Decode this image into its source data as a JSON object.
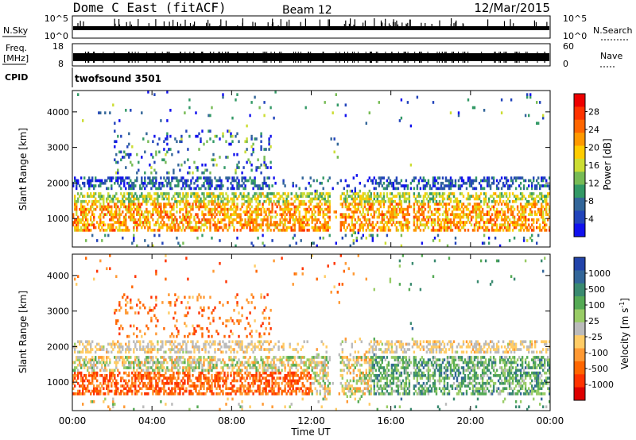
{
  "header": {
    "title": "Dome C East (fitACF)",
    "beam": "Beam 12",
    "date": "12/Mar/2015"
  },
  "top_panels": {
    "nsky_label": "N.Sky",
    "nsky_ticks": [
      "10^5",
      "10^0"
    ],
    "nsearch_label": "N.Search",
    "nsearch_ticks": [
      "10^5",
      "10^0"
    ],
    "freq_label_line1": "Freq.",
    "freq_label_line2": "[MHz]",
    "freq_ticks": [
      "18",
      "8"
    ],
    "nave_label": "Nave",
    "nave_ticks": [
      "60",
      "0"
    ],
    "cpid_label": "CPID",
    "cpid_value": "twofsound 3501"
  },
  "chart_data": [
    {
      "type": "heatmap",
      "name": "power",
      "ylabel": "Slant Range [km]",
      "ylim": [
        200,
        4600
      ],
      "yticks": [
        1000,
        2000,
        3000,
        4000
      ],
      "xlim": [
        0,
        24
      ],
      "colorbar": {
        "label": "Power [dB]",
        "ticks": [
          "28",
          "24",
          "20",
          "16",
          "12",
          "8",
          "4"
        ],
        "colors": [
          "#ee0000",
          "#ff3300",
          "#ff6600",
          "#ff9900",
          "#ffcc00",
          "#ccdd33",
          "#77bb55",
          "#339966",
          "#336699",
          "#2244bb",
          "#1111ee"
        ]
      }
    },
    {
      "type": "heatmap",
      "name": "velocity",
      "ylabel": "Slant Range [km]",
      "ylim": [
        200,
        4600
      ],
      "yticks": [
        1000,
        2000,
        3000,
        4000
      ],
      "xlim": [
        0,
        24
      ],
      "colorbar": {
        "label": "Velocity [m s^-1]",
        "ticks": [
          "1000",
          "500",
          "100",
          "25",
          "-25",
          "-100",
          "-500",
          "-1000"
        ],
        "colors": [
          "#2244aa",
          "#336699",
          "#3a8a70",
          "#55aa55",
          "#99cc66",
          "#bbbbbb",
          "#ffcc66",
          "#ff9933",
          "#ff6600",
          "#ff3300",
          "#dd0000"
        ]
      }
    }
  ],
  "xaxis": {
    "ticks": [
      "00:00",
      "04:00",
      "08:00",
      "12:00",
      "16:00",
      "20:00",
      "00:00"
    ],
    "label": "Time UT"
  }
}
